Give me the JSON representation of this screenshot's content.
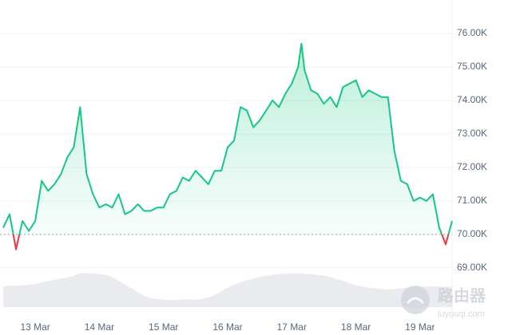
{
  "chart_data": {
    "type": "line",
    "x": [
      12.5,
      12.6,
      12.7,
      12.8,
      12.9,
      13.0,
      13.1,
      13.2,
      13.3,
      13.4,
      13.5,
      13.6,
      13.7,
      13.8,
      13.9,
      14.0,
      14.1,
      14.2,
      14.3,
      14.4,
      14.5,
      14.6,
      14.7,
      14.8,
      14.9,
      15.0,
      15.1,
      15.2,
      15.3,
      15.4,
      15.5,
      15.6,
      15.7,
      15.8,
      15.9,
      16.0,
      16.1,
      16.2,
      16.3,
      16.4,
      16.5,
      16.6,
      16.7,
      16.8,
      16.9,
      17.0,
      17.1,
      17.15,
      17.2,
      17.3,
      17.4,
      17.5,
      17.6,
      17.7,
      17.8,
      17.9,
      18.0,
      18.1,
      18.2,
      18.3,
      18.4,
      18.5,
      18.6,
      18.7,
      18.8,
      18.9,
      19.0,
      19.1,
      19.2,
      19.3,
      19.4,
      19.5
    ],
    "values": [
      70200,
      70600,
      69550,
      70400,
      70100,
      70400,
      71600,
      71300,
      71500,
      71800,
      72300,
      72600,
      73800,
      71800,
      71200,
      70800,
      70900,
      70800,
      71200,
      70600,
      70700,
      70900,
      70700,
      70700,
      70800,
      70800,
      71200,
      71300,
      71700,
      71600,
      71900,
      71700,
      71500,
      71900,
      71900,
      72600,
      72800,
      73800,
      73700,
      73200,
      73400,
      73700,
      74000,
      73800,
      74200,
      74500,
      75000,
      75700,
      74900,
      74300,
      74200,
      73900,
      74100,
      73800,
      74400,
      74500,
      74600,
      74100,
      74300,
      74200,
      74100,
      74100,
      72500,
      71600,
      71500,
      71000,
      71100,
      71000,
      71200,
      70200,
      69700,
      70400
    ],
    "volume": {
      "values": [
        55,
        57,
        57,
        58,
        60,
        62,
        65,
        70,
        73,
        76,
        78,
        84,
        90,
        91,
        90,
        88,
        86,
        80,
        70,
        60,
        50,
        40,
        30,
        24,
        22,
        20,
        19,
        19,
        20,
        21,
        20,
        22,
        26,
        32,
        42,
        52,
        60,
        66,
        72,
        76,
        80,
        84,
        86,
        88,
        89,
        90,
        90,
        90,
        89,
        88,
        86,
        84,
        80,
        75,
        70,
        64,
        58,
        55,
        52,
        50,
        48,
        47,
        48,
        50,
        52,
        52,
        54,
        55,
        55,
        55,
        54,
        54
      ],
      "ylim": [
        0,
        100
      ],
      "color": "#e9ebef"
    },
    "baseline": 70000,
    "color": "#16c784",
    "down_color": "#ea3943",
    "xlim": [
      12.5,
      19.5
    ],
    "xticks": [
      {
        "value": 13,
        "label": "13 Mar"
      },
      {
        "value": 14,
        "label": "14 Mar"
      },
      {
        "value": 15,
        "label": "15 Mar"
      },
      {
        "value": 16,
        "label": "16 Mar"
      },
      {
        "value": 17,
        "label": "17 Mar"
      },
      {
        "value": 18,
        "label": "18 Mar"
      },
      {
        "value": 19,
        "label": "19 Mar"
      }
    ],
    "ylim": [
      68900,
      77000
    ],
    "yticks": [
      {
        "value": 69000,
        "label": "69.00K"
      },
      {
        "value": 70000,
        "label": "70.00K"
      },
      {
        "value": 71000,
        "label": "71.00K"
      },
      {
        "value": 72000,
        "label": "72.00K"
      },
      {
        "value": 73000,
        "label": "73.00K"
      },
      {
        "value": 74000,
        "label": "74.00K"
      },
      {
        "value": 75000,
        "label": "75.00K"
      },
      {
        "value": 76000,
        "label": "76.00K"
      }
    ],
    "grid": true,
    "watermark": {
      "title": "路由器",
      "subtitle": "luyouqi.com"
    }
  }
}
